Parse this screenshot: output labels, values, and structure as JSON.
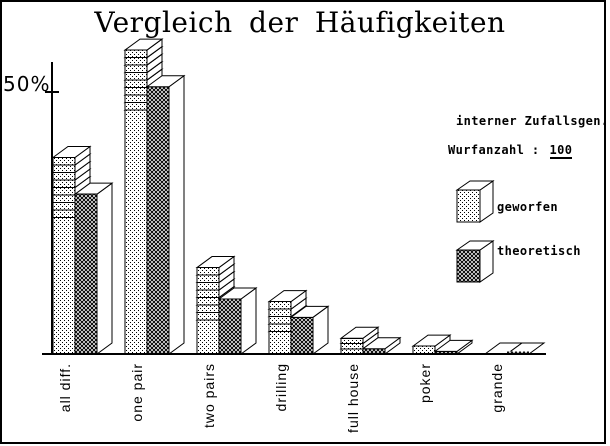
{
  "title": "Vergleich der Häufigkeiten",
  "y_axis": {
    "tick_label": "50%",
    "tick_value": 50
  },
  "annotations": {
    "generator": "interner Zufallsgen.",
    "throws_label": "Wurfanzahl :",
    "throws_value": "100"
  },
  "legend": [
    {
      "label": "geworfen",
      "pattern": "dots"
    },
    {
      "label": "theoretisch",
      "pattern": "cross"
    }
  ],
  "colors": {
    "foreground": "#000000",
    "background": "#ffffff"
  },
  "chart_data": {
    "type": "bar",
    "title": "Vergleich der Häufigkeiten",
    "categories": [
      "all diff.",
      "one pair",
      "two pairs",
      "drilling",
      "full house",
      "poker",
      "grande"
    ],
    "series": [
      {
        "name": "geworfen",
        "pattern": "dots",
        "values": [
          37.5,
          58,
          16.5,
          10,
          3,
          1.5,
          0
        ]
      },
      {
        "name": "theoretisch",
        "pattern": "cross",
        "values": [
          30.5,
          51,
          10.5,
          7,
          1,
          0.5,
          0
        ]
      }
    ],
    "unit": "%",
    "ylim": [
      0,
      56
    ],
    "y_ticks": [
      {
        "value": 50,
        "label": "50%"
      }
    ],
    "grid": false,
    "legend_position": "right",
    "style_3d": true,
    "geworfen_stack_segments": [
      8,
      8,
      7,
      4,
      3,
      1,
      0
    ]
  }
}
